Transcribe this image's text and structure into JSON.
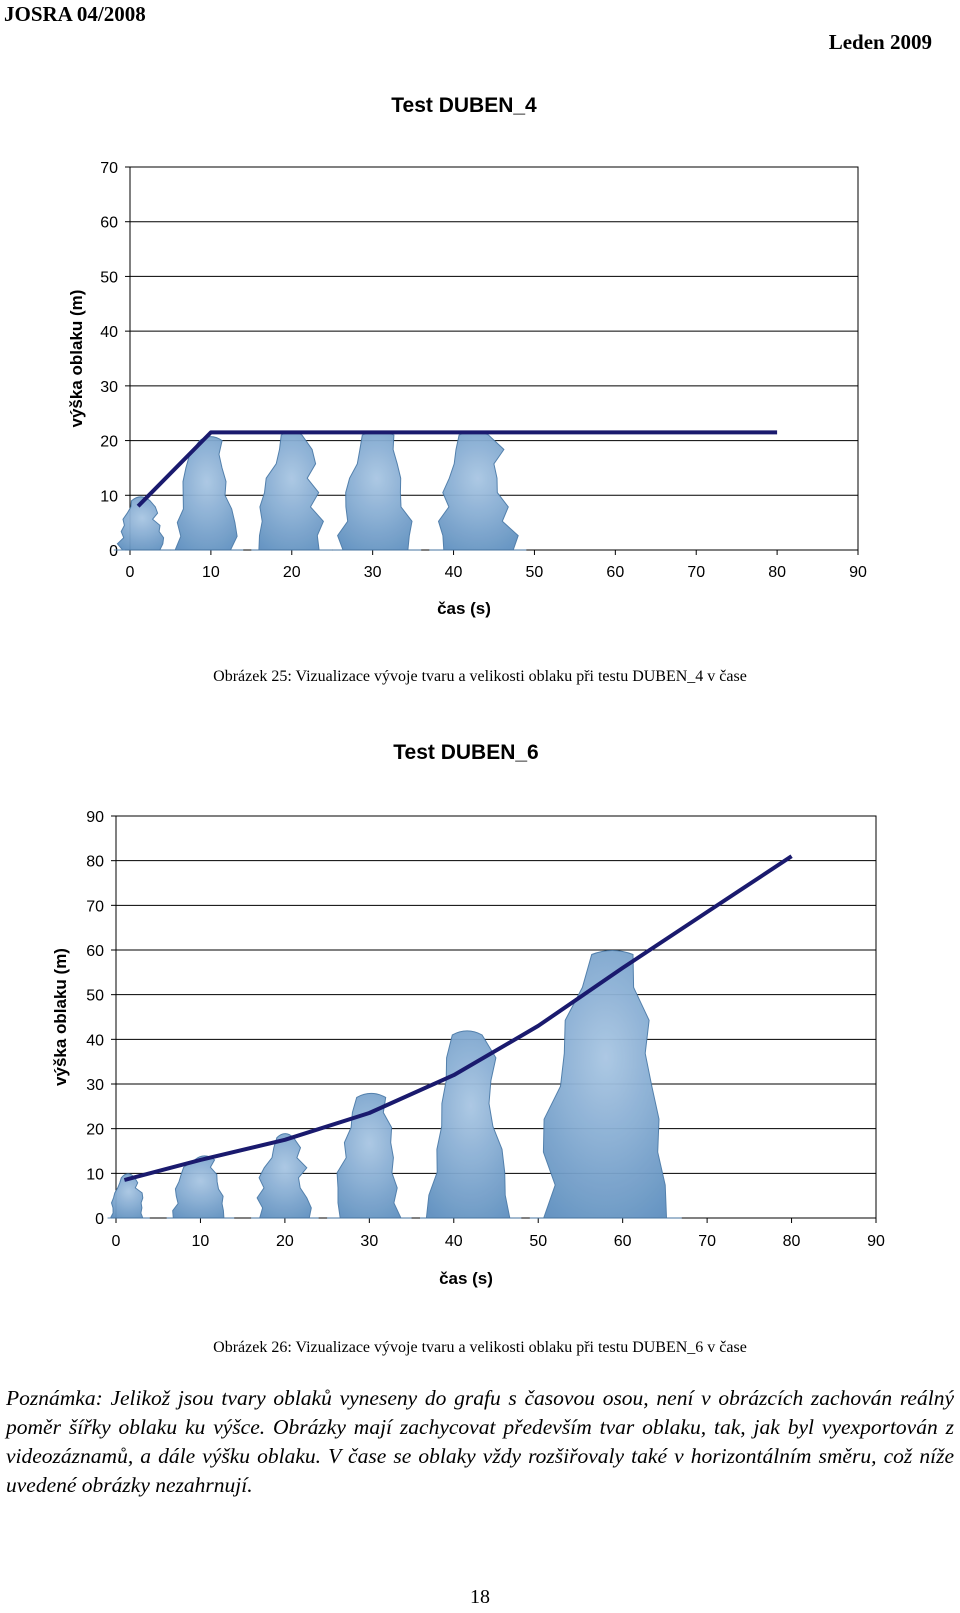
{
  "header": {
    "journal": "JOSRA 04/2008",
    "date": "Leden 2009"
  },
  "figures": [
    {
      "caption": "Obrázek 25: Vizualizace vývoje tvaru a velikosti oblaku při testu DUBEN_4 v čase"
    },
    {
      "caption": "Obrázek 26: Vizualizace vývoje tvaru a velikosti oblaku při testu DUBEN_6 v čase"
    }
  ],
  "note": "Poznámka: Jelikož jsou tvary oblaků vyneseny do grafu s časovou osou, není v obrázcích zachován reálný poměr šířky oblaku ku výšce. Obrázky mají zachycovat především tvar oblaku, tak, jak byl vyexportován z videozáznamů, a dále výšku oblaku. V čase se oblaky vždy rozšiřovaly také v horizontálním směru, což níže uvedené obrázky nezahrnují.",
  "page_number": "18",
  "colors": {
    "line": "#1a1a6e",
    "cloud": "#5e8fbf",
    "cloud_light": "#a9c6e3",
    "grid": "#000000"
  },
  "chart_data": [
    {
      "type": "line",
      "title": "Test DUBEN_4",
      "xlabel": "čas (s)",
      "ylabel": "výška oblaku (m)",
      "xlim": [
        0,
        90
      ],
      "ylim": [
        0,
        70
      ],
      "xticks": [
        "0",
        "10",
        "20",
        "30",
        "40",
        "50",
        "60",
        "70",
        "80",
        "90"
      ],
      "yticks": [
        "0",
        "10",
        "20",
        "30",
        "40",
        "50",
        "60",
        "70"
      ],
      "grid": "horizontal",
      "series": [
        {
          "x": [
            1,
            10,
            80
          ],
          "y": [
            8,
            21.5,
            21.5
          ]
        }
      ],
      "cloud_images": [
        {
          "x_from": -2,
          "x_to": 5,
          "height": 9
        },
        {
          "x_from": 5,
          "x_to": 14,
          "height": 20
        },
        {
          "x_from": 15,
          "x_to": 25,
          "height": 21
        },
        {
          "x_from": 25,
          "x_to": 36,
          "height": 21
        },
        {
          "x_from": 37,
          "x_to": 49,
          "height": 21
        }
      ]
    },
    {
      "type": "line",
      "title": "Test DUBEN_6",
      "xlabel": "čas (s)",
      "ylabel": "výška oblaku (m)",
      "xlim": [
        0,
        90
      ],
      "ylim": [
        0,
        90
      ],
      "xticks": [
        "0",
        "10",
        "20",
        "30",
        "40",
        "50",
        "60",
        "70",
        "80",
        "90"
      ],
      "yticks": [
        "0",
        "10",
        "20",
        "30",
        "40",
        "50",
        "60",
        "70",
        "80",
        "90"
      ],
      "grid": "horizontal",
      "series": [
        {
          "x": [
            1,
            10,
            20,
            30,
            40,
            50,
            60,
            70,
            80
          ],
          "y": [
            8.5,
            13,
            17.5,
            23.5,
            32,
            43,
            56,
            68.5,
            81
          ]
        }
      ],
      "cloud_images": [
        {
          "x_from": -1,
          "x_to": 4,
          "height": 9
        },
        {
          "x_from": 6,
          "x_to": 14,
          "height": 13
        },
        {
          "x_from": 16,
          "x_to": 24,
          "height": 18
        },
        {
          "x_from": 25,
          "x_to": 35,
          "height": 27
        },
        {
          "x_from": 36,
          "x_to": 48,
          "height": 41
        },
        {
          "x_from": 49,
          "x_to": 67,
          "height": 59
        }
      ]
    }
  ]
}
